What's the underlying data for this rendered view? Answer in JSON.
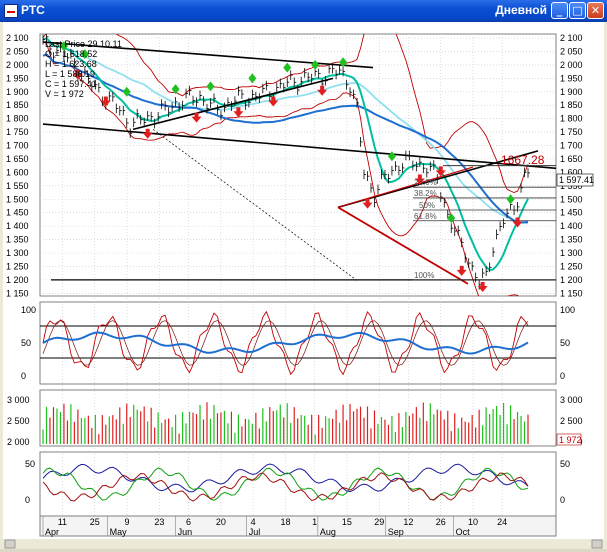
{
  "window": {
    "title": "РТС",
    "mode": "Дневной",
    "buttons": {
      "minimize": "_",
      "maximize": "□",
      "close": "✕"
    }
  },
  "colors": {
    "background": "#ffffff",
    "bollinger": "#c00000",
    "ma_fast": "#00c0a0",
    "ma_slow": "#1f6fd0",
    "ma_mid": "#8fe0f0",
    "price": "#000000",
    "up_marker": "#20c020",
    "down_marker": "#e02020",
    "fibo": "#c00000"
  },
  "price_panel": {
    "info": [
      "Last Price 29.10.11",
      "O = 1 618.52",
      "H = 1 623.68",
      "L = 1 586.19",
      "C = 1 597.41",
      "V = 1 972"
    ],
    "y_ticks": [
      "2 100",
      "2 050",
      "2 000",
      "1 950",
      "1 900",
      "1 850",
      "1 800",
      "1 750",
      "1 700",
      "1 650",
      "1 600",
      "1 550",
      "1 500",
      "1 450",
      "1 400",
      "1 350",
      "1 300",
      "1 250",
      "1 200",
      "1 150"
    ],
    "last_value": "1 597.41",
    "annotation": "1667.28",
    "fibo_levels": [
      "23.6%",
      "38.2%",
      "50%",
      "61.8%",
      "100%"
    ]
  },
  "oscillator_panel": {
    "y_ticks": [
      "100",
      "50",
      "0"
    ]
  },
  "volume_panel": {
    "y_ticks": [
      "3 000",
      "2 500",
      "2 000"
    ],
    "last_value": "1 972"
  },
  "adx_panel": {
    "y_ticks": [
      "50",
      "0"
    ]
  },
  "x_axis": {
    "days": [
      "11",
      "25",
      "9",
      "23",
      "6",
      "20",
      "4",
      "18",
      "1",
      "15",
      "29",
      "12",
      "26",
      "10",
      "24"
    ],
    "months": [
      "Apr",
      "May",
      "Jun",
      "Jul",
      "Aug",
      "Sep",
      "Oct"
    ]
  }
}
